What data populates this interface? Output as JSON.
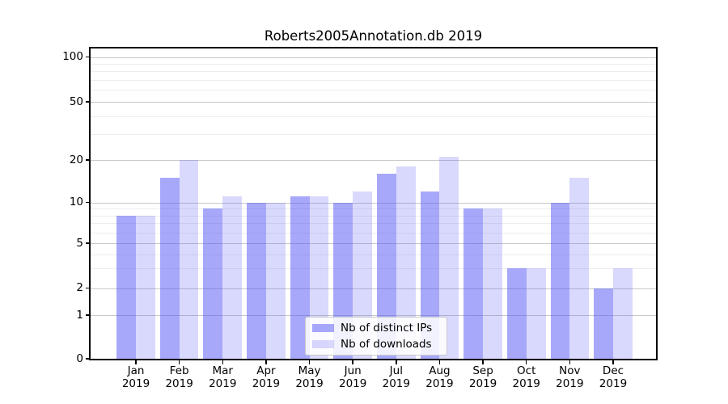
{
  "chart_data": {
    "type": "bar",
    "title": "Roberts2005Annotation.db 2019",
    "categories": [
      "Jan 2019",
      "Feb 2019",
      "Mar 2019",
      "Apr 2019",
      "May 2019",
      "Jun 2019",
      "Jul 2019",
      "Aug 2019",
      "Sep 2019",
      "Oct 2019",
      "Nov 2019",
      "Dec 2019"
    ],
    "series": [
      {
        "name": "Nb of distinct IPs",
        "key": "distinct-ips",
        "color": "rgba(81,81,245,0.5)",
        "values": [
          8,
          15,
          9,
          10,
          11,
          10,
          16,
          12,
          9,
          3,
          10,
          2
        ]
      },
      {
        "name": "Nb of downloads",
        "key": "downloads",
        "color": "rgba(81,81,245,0.22)",
        "values": [
          8,
          20,
          11,
          10,
          11,
          12,
          18,
          21,
          9,
          3,
          15,
          3
        ]
      }
    ],
    "y_axis": {
      "ticks": [
        0,
        1,
        2,
        5,
        10,
        20,
        50,
        100
      ],
      "scale": "log-like with zero baseline",
      "range": [
        0,
        115
      ]
    },
    "grid": "major grey lines at labeled ticks, faint minor log lines",
    "legend": {
      "position": "lower center",
      "entries": [
        "Nb of distinct IPs",
        "Nb of downloads"
      ]
    }
  }
}
